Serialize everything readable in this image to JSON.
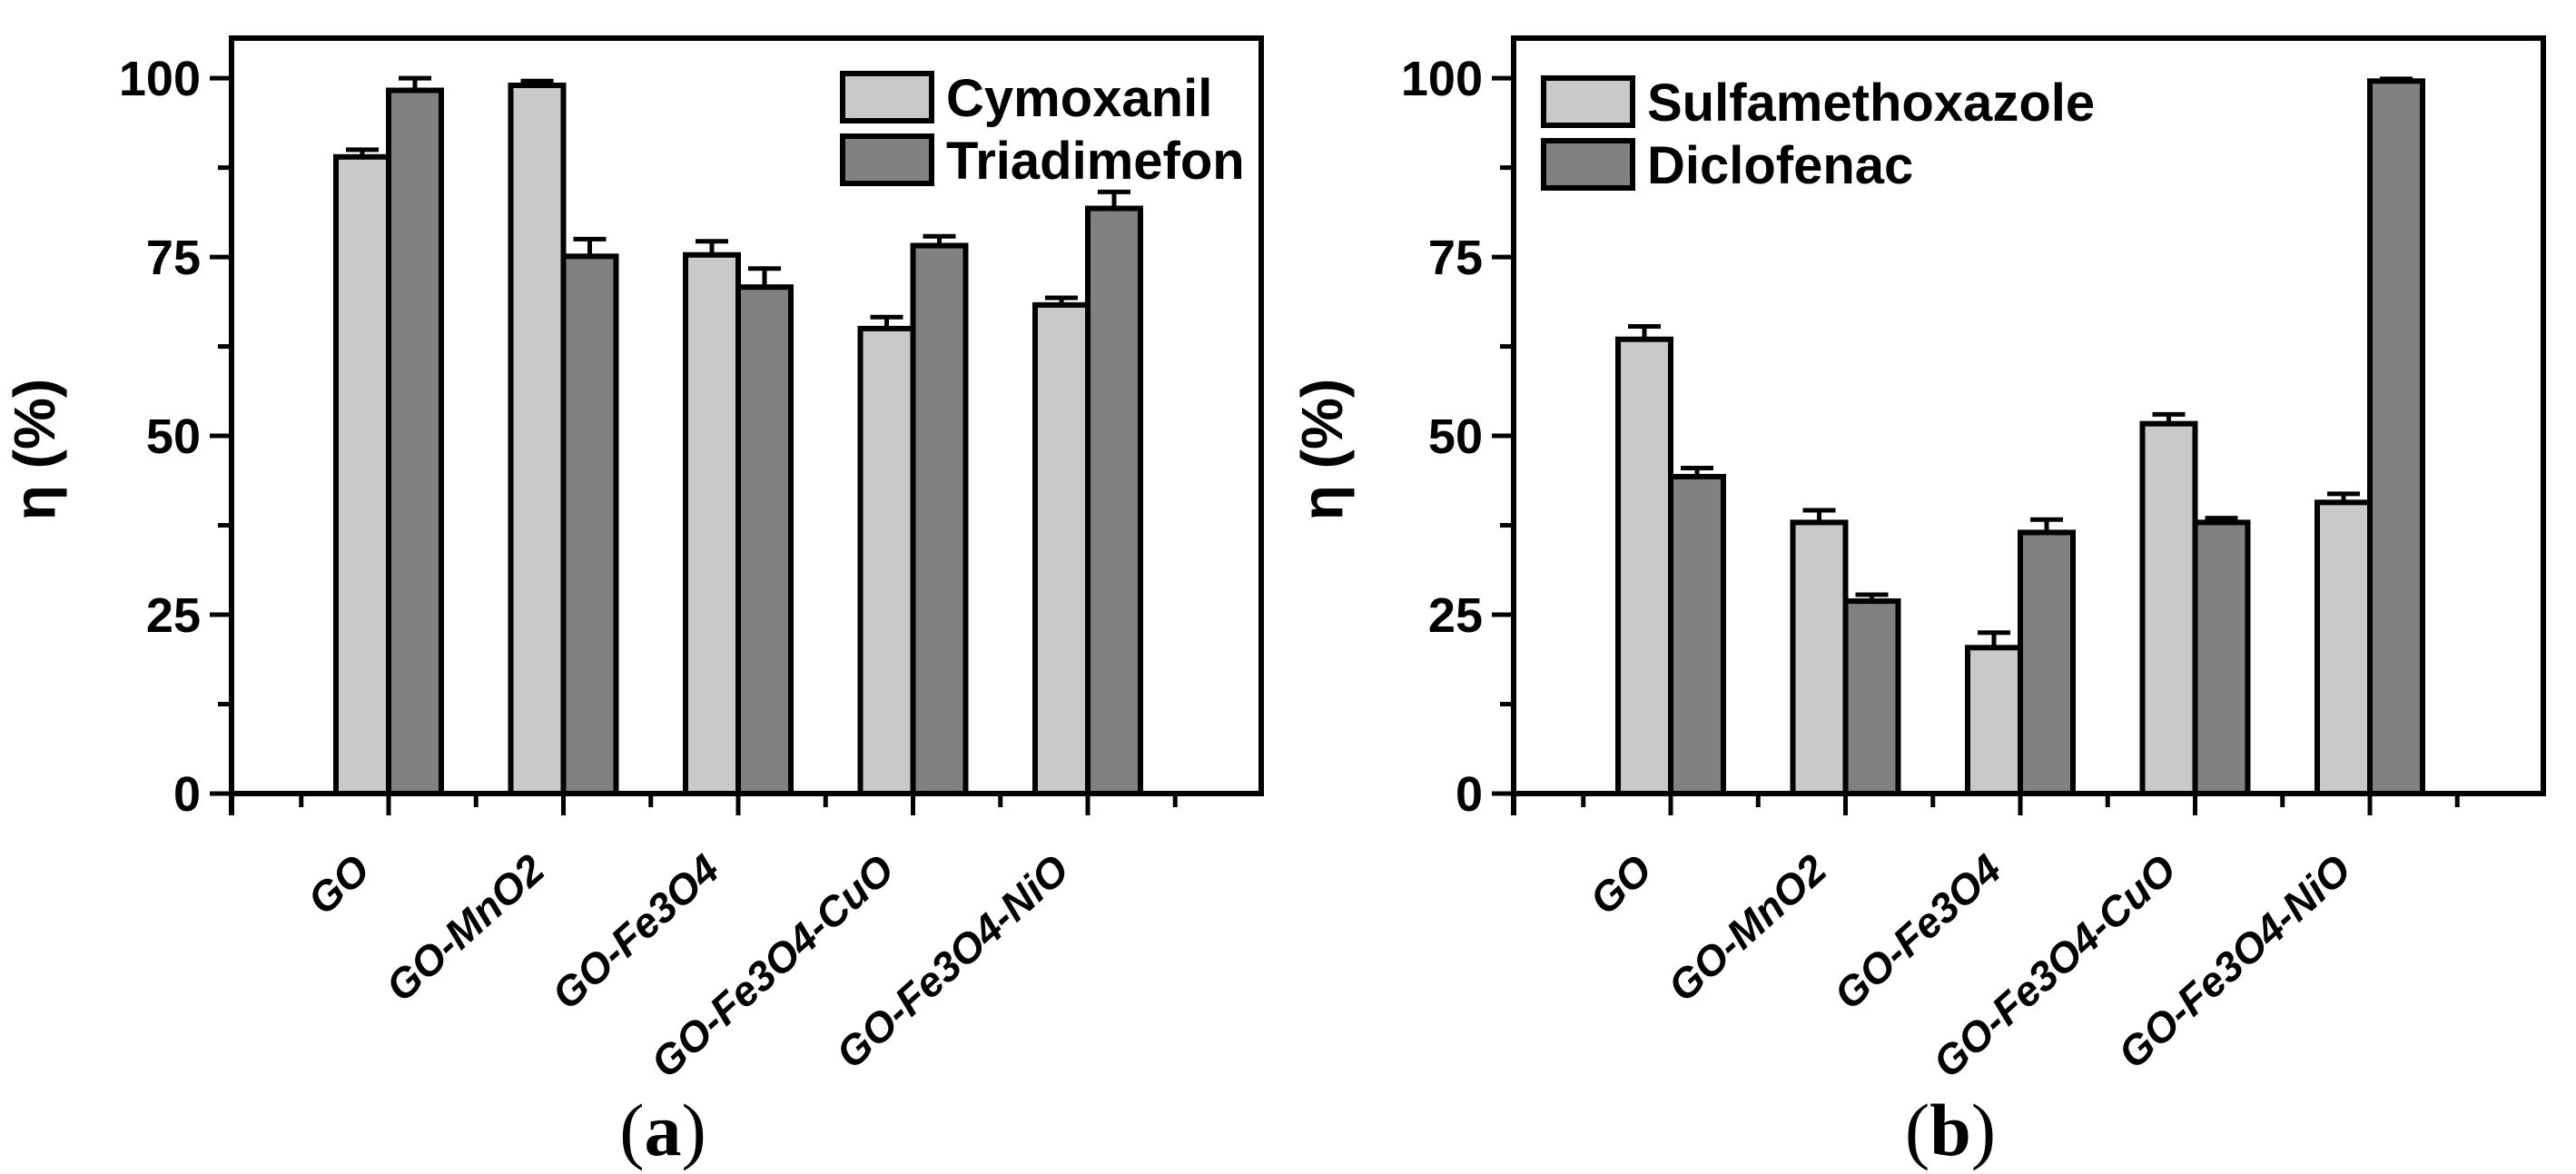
{
  "figure": {
    "captions": [
      {
        "open": "(",
        "letter": "a",
        "close": ")"
      },
      {
        "open": "(",
        "letter": "b",
        "close": ")"
      }
    ]
  },
  "colors": {
    "series_light": "#c9c9c9",
    "series_dark": "#818181",
    "line": "#000000",
    "background": "#ffffff"
  },
  "chart_data": [
    {
      "type": "bar",
      "panel": "a",
      "title": "",
      "xlabel": "",
      "ylabel": "η (%)",
      "caption": "(a)",
      "legend_position": "top-right-inside",
      "grid": false,
      "ylim": [
        0,
        105.6
      ],
      "yticks": [
        0,
        25,
        50,
        75,
        100
      ],
      "yticks_minor": [
        12.5,
        37.5,
        62.5,
        87.5
      ],
      "categories": [
        "GO",
        "GO-MnO2",
        "GO-Fe3O4",
        "GO-Fe3O4-CuO",
        "GO-Fe3O4-NiO"
      ],
      "series": [
        {
          "name": "Cymoxanil",
          "color": "#c9c9c9",
          "values": [
            89.0,
            99.0,
            75.3,
            65.0,
            68.3
          ],
          "errors_plus": [
            1.0,
            0.6,
            1.9,
            1.6,
            1.0
          ]
        },
        {
          "name": "Triadimefon",
          "color": "#818181",
          "values": [
            98.3,
            75.1,
            70.8,
            76.6,
            81.8
          ],
          "errors_plus": [
            1.7,
            2.4,
            2.6,
            1.3,
            2.3
          ]
        }
      ]
    },
    {
      "type": "bar",
      "panel": "b",
      "title": "",
      "xlabel": "",
      "ylabel": "η (%)",
      "caption": "(b)",
      "legend_position": "top-left-inside",
      "grid": false,
      "ylim": [
        0,
        105.6
      ],
      "yticks": [
        0,
        25,
        50,
        75,
        100
      ],
      "yticks_minor": [
        12.5,
        37.5,
        62.5,
        87.5
      ],
      "categories": [
        "GO",
        "GO-MnO2",
        "GO-Fe3O4",
        "GO-Fe3O4-CuO",
        "GO-Fe3O4-NiO"
      ],
      "series": [
        {
          "name": "Sulfamethoxazole",
          "color": "#c9c9c9",
          "values": [
            63.5,
            37.9,
            20.4,
            51.7,
            40.7
          ],
          "errors_plus": [
            1.8,
            1.7,
            2.1,
            1.3,
            1.2
          ]
        },
        {
          "name": "Diclofenac",
          "color": "#818181",
          "values": [
            44.3,
            26.9,
            36.5,
            37.9,
            99.6
          ],
          "errors_plus": [
            1.2,
            0.9,
            1.8,
            0.6,
            0.3
          ]
        }
      ]
    }
  ]
}
